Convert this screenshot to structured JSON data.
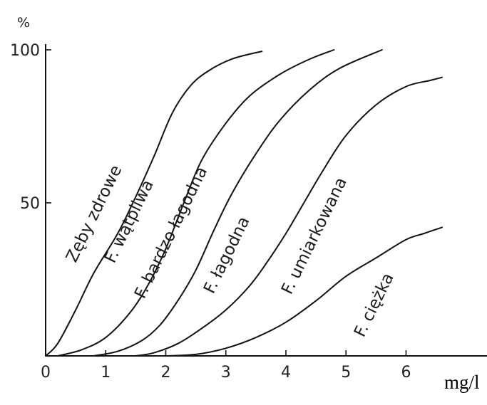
{
  "chart_data": {
    "type": "line",
    "title": "",
    "xlabel": "mg/l",
    "ylabel": "%",
    "xlim": [
      0,
      6.6
    ],
    "ylim": [
      0,
      100
    ],
    "x_ticks": [
      "0",
      "1",
      "2",
      "3",
      "4",
      "5",
      "6"
    ],
    "y_ticks": [
      "50",
      "100"
    ],
    "grid": false,
    "legend": "none",
    "series": [
      {
        "name": "Zęby zdrowe",
        "points": [
          [
            0,
            0
          ],
          [
            0.2,
            4
          ],
          [
            0.5,
            15
          ],
          [
            0.8,
            27
          ],
          [
            1.2,
            40
          ],
          [
            1.5,
            52
          ],
          [
            1.8,
            65
          ],
          [
            2.1,
            79
          ],
          [
            2.4,
            88
          ],
          [
            2.7,
            93
          ],
          [
            3.1,
            97
          ],
          [
            3.6,
            99.5
          ]
        ]
      },
      {
        "name": "F. wątpliwa",
        "points": [
          [
            0.2,
            0
          ],
          [
            0.6,
            2
          ],
          [
            1.0,
            6
          ],
          [
            1.4,
            14
          ],
          [
            1.7,
            23
          ],
          [
            2.0,
            35
          ],
          [
            2.3,
            50
          ],
          [
            2.6,
            64
          ],
          [
            3.0,
            76
          ],
          [
            3.4,
            85
          ],
          [
            3.9,
            92
          ],
          [
            4.4,
            97
          ],
          [
            4.8,
            100
          ]
        ]
      },
      {
        "name": "F. bardzo łagodna",
        "points": [
          [
            0.8,
            0
          ],
          [
            1.2,
            1.5
          ],
          [
            1.6,
            5
          ],
          [
            1.9,
            10
          ],
          [
            2.2,
            18
          ],
          [
            2.5,
            28
          ],
          [
            2.8,
            41
          ],
          [
            3.1,
            53
          ],
          [
            3.5,
            66
          ],
          [
            3.9,
            77
          ],
          [
            4.4,
            87
          ],
          [
            4.9,
            94
          ],
          [
            5.6,
            100
          ]
        ]
      },
      {
        "name": "F. łagodna",
        "points": [
          [
            1.5,
            0
          ],
          [
            1.8,
            1
          ],
          [
            2.2,
            4
          ],
          [
            2.6,
            9
          ],
          [
            3.0,
            15
          ],
          [
            3.4,
            23
          ],
          [
            3.7,
            31
          ],
          [
            4.0,
            40
          ],
          [
            4.3,
            50
          ],
          [
            4.6,
            60
          ],
          [
            5.0,
            72
          ],
          [
            5.5,
            82
          ],
          [
            6.0,
            88
          ],
          [
            6.4,
            90
          ],
          [
            6.6,
            91
          ]
        ]
      },
      {
        "name": "F. umiarkowana",
        "points": [
          [
            2.0,
            0
          ],
          [
            2.5,
            0.5
          ],
          [
            3.0,
            2.5
          ],
          [
            3.5,
            6
          ],
          [
            4.0,
            11
          ],
          [
            4.5,
            18
          ],
          [
            5.0,
            26
          ],
          [
            5.5,
            32
          ],
          [
            6.0,
            38
          ],
          [
            6.3,
            40
          ],
          [
            6.6,
            42
          ]
        ]
      },
      {
        "name": "F. ciężka",
        "points": []
      }
    ]
  }
}
